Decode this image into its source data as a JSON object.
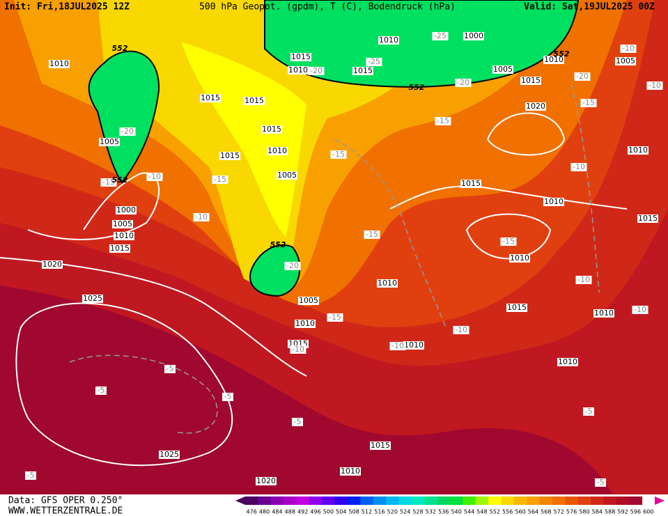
{
  "header": {
    "init": "Init: Fri,18JUL2025 12Z",
    "title": "500 hPa Geopot. (gpdm), T (C), Bodendruck (hPa)",
    "valid": "Valid: Sat,19JUL2025 00Z"
  },
  "footer": {
    "data": "Data: GFS OPER 0.250°",
    "site": "WWW.WETTERZENTRALE.DE"
  },
  "colorbar": {
    "ticks": [
      476,
      480,
      484,
      488,
      492,
      496,
      500,
      504,
      508,
      512,
      516,
      520,
      524,
      528,
      532,
      536,
      540,
      544,
      548,
      552,
      556,
      560,
      564,
      568,
      572,
      576,
      580,
      584,
      588,
      592,
      596,
      600
    ],
    "colors": [
      "#4b0060",
      "#6a0090",
      "#8a00b0",
      "#a800c8",
      "#c000e0",
      "#9000e8",
      "#6000f0",
      "#3000f0",
      "#0020f0",
      "#0060f0",
      "#0090f0",
      "#00b8f0",
      "#00d8e8",
      "#00e8c0",
      "#00e090",
      "#00d860",
      "#00e040",
      "#40f000",
      "#a0f800",
      "#ffff00",
      "#f8d800",
      "#f8b800",
      "#f8a000",
      "#f08800",
      "#f07000",
      "#e85800",
      "#e04010",
      "#d02818",
      "#c01820",
      "#b00c28",
      "#a00830",
      "#e000a0"
    ]
  },
  "map_labels": {
    "isobars": [
      "1010",
      "1015",
      "1010",
      "1015",
      "1010",
      "1000",
      "1005",
      "1010",
      "1005",
      "1015",
      "1020",
      "1015",
      "1015",
      "1015",
      "1005",
      "1015",
      "1010",
      "1005",
      "1015",
      "1010",
      "1010",
      "1015",
      "1000",
      "1005",
      "1010",
      "1015",
      "1010",
      "1020",
      "1025",
      "1005",
      "1010",
      "1015",
      "1010",
      "1010",
      "1015",
      "1010",
      "1010",
      "1015",
      "1025",
      "1010",
      "1020"
    ],
    "temperatures": [
      "-25",
      "-25",
      "-20",
      "-20",
      "-20",
      "-10",
      "-10",
      "-15",
      "-15",
      "-20",
      "-15",
      "-15",
      "-10",
      "-15",
      "-10",
      "-10",
      "-15",
      "-15",
      "-20",
      "-10",
      "-15",
      "-10",
      "-10",
      "-10",
      "-10",
      "-5",
      "-5",
      "-5",
      "-5",
      "-5",
      "-5",
      "-5"
    ],
    "heights": [
      "552",
      "552",
      "552",
      "552",
      "552"
    ]
  }
}
